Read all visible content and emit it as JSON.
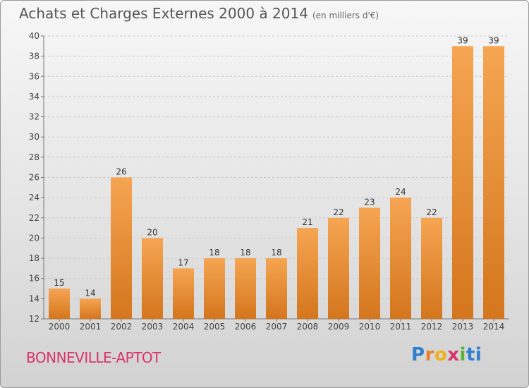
{
  "title": "Achats et Charges Externes 2000 à 2014",
  "unit": "(en milliers d'€)",
  "commune": "BONNEVILLE-APTOT",
  "logo": [
    "P",
    "r",
    "o",
    "x",
    "i",
    "ti"
  ],
  "colors": {
    "bar_light": "#f6a552",
    "bar_dark": "#d4761d",
    "commune_text": "#d8356e"
  },
  "chart_data": {
    "type": "bar",
    "categories": [
      "2000",
      "2001",
      "2002",
      "2003",
      "2004",
      "2005",
      "2006",
      "2007",
      "2008",
      "2009",
      "2010",
      "2011",
      "2012",
      "2013",
      "2014"
    ],
    "values": [
      15,
      14,
      26,
      20,
      17,
      18,
      18,
      18,
      21,
      22,
      23,
      24,
      22,
      39,
      39
    ],
    "ylim": [
      12,
      40
    ],
    "yticks": [
      12,
      14,
      16,
      18,
      20,
      22,
      24,
      26,
      28,
      30,
      32,
      34,
      36,
      38,
      40
    ],
    "grid": true
  }
}
